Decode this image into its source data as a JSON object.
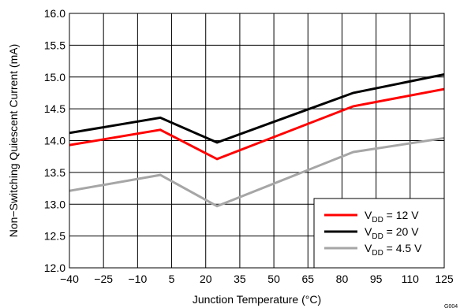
{
  "chart_data": {
    "type": "line",
    "xlabel": "Junction Temperature (°C)",
    "ylabel": "Non−Switching Quiescent Current (mA)",
    "xlim": [
      -40,
      125
    ],
    "ylim": [
      12.0,
      16.0
    ],
    "x_ticks": [
      -40,
      -25,
      -10,
      5,
      20,
      35,
      50,
      65,
      80,
      95,
      110,
      125
    ],
    "x_tick_labels": [
      "−40",
      "−25",
      "−10",
      "5",
      "20",
      "35",
      "50",
      "65",
      "80",
      "95",
      "110",
      "125"
    ],
    "y_ticks": [
      12.0,
      12.5,
      13.0,
      13.5,
      14.0,
      14.5,
      15.0,
      15.5,
      16.0
    ],
    "y_tick_labels": [
      "12.0",
      "12.5",
      "13.0",
      "13.5",
      "14.0",
      "14.5",
      "15.0",
      "15.5",
      "16.0"
    ],
    "grid": true,
    "legend_position": "bottom-right",
    "series": [
      {
        "name": "12 V",
        "subscript": "DD",
        "color": "#ff0000",
        "x": [
          -40,
          0,
          25,
          85,
          125
        ],
        "y": [
          13.93,
          14.17,
          13.71,
          14.54,
          14.81
        ]
      },
      {
        "name": "20 V",
        "subscript": "DD",
        "color": "#000000",
        "x": [
          -40,
          0,
          25,
          85,
          125
        ],
        "y": [
          14.12,
          14.36,
          13.97,
          14.75,
          15.04
        ]
      },
      {
        "name": "4.5 V",
        "subscript": "DD",
        "color": "#a6a6a6",
        "x": [
          -40,
          0,
          25,
          85,
          125
        ],
        "y": [
          13.21,
          13.46,
          12.97,
          13.82,
          14.04
        ]
      }
    ],
    "legend_symbol": "V",
    "figure_id": "G004"
  }
}
